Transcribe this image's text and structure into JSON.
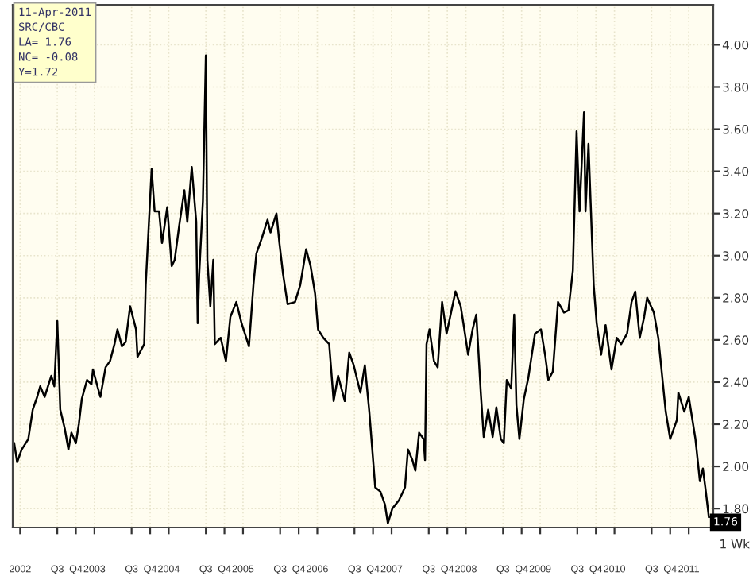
{
  "chart_data": {
    "type": "line",
    "x": [
      2001.92,
      2001.96,
      2002.02,
      2002.11,
      2002.17,
      2002.23,
      2002.27,
      2002.33,
      2002.42,
      2002.46,
      2002.5,
      2002.54,
      2002.6,
      2002.65,
      2002.69,
      2002.75,
      2002.79,
      2002.83,
      2002.9,
      2002.96,
      2002.98,
      2003.04,
      2003.08,
      2003.15,
      2003.21,
      2003.27,
      2003.31,
      2003.37,
      2003.42,
      2003.48,
      2003.56,
      2003.58,
      2003.67,
      2003.69,
      2003.77,
      2003.81,
      2003.87,
      2003.91,
      2003.98,
      2004.04,
      2004.08,
      2004.14,
      2004.21,
      2004.25,
      2004.31,
      2004.37,
      2004.39,
      2004.41,
      2004.46,
      2004.5,
      2004.52,
      2004.56,
      2004.6,
      2004.62,
      2004.7,
      2004.77,
      2004.83,
      2004.91,
      2004.98,
      2005.08,
      2005.14,
      2005.18,
      2005.25,
      2005.33,
      2005.37,
      2005.45,
      2005.49,
      2005.54,
      2005.6,
      2005.7,
      2005.77,
      2005.85,
      2005.91,
      2005.97,
      2006.01,
      2006.08,
      2006.16,
      2006.22,
      2006.28,
      2006.37,
      2006.43,
      2006.49,
      2006.58,
      2006.64,
      2006.7,
      2006.74,
      2006.78,
      2006.85,
      2006.91,
      2006.95,
      2007.01,
      2007.1,
      2007.18,
      2007.22,
      2007.28,
      2007.32,
      2007.37,
      2007.43,
      2007.45,
      2007.47,
      2007.51,
      2007.57,
      2007.62,
      2007.68,
      2007.74,
      2007.8,
      2007.86,
      2007.93,
      2007.97,
      2008.03,
      2008.09,
      2008.14,
      2008.2,
      2008.24,
      2008.3,
      2008.36,
      2008.41,
      2008.47,
      2008.51,
      2008.55,
      2008.61,
      2008.65,
      2008.68,
      2008.72,
      2008.78,
      2008.84,
      2008.93,
      2009.01,
      2009.07,
      2009.11,
      2009.17,
      2009.24,
      2009.32,
      2009.38,
      2009.44,
      2009.49,
      2009.53,
      2009.59,
      2009.61,
      2009.65,
      2009.72,
      2009.76,
      2009.82,
      2009.88,
      2009.96,
      2010.03,
      2010.09,
      2010.17,
      2010.23,
      2010.28,
      2010.34,
      2010.4,
      2010.44,
      2010.53,
      2010.59,
      2010.69,
      2010.75,
      2010.84,
      2010.86,
      2010.94,
      2011.0,
      2011.09,
      2011.15,
      2011.19,
      2011.23,
      2011.27
    ],
    "series": [
      {
        "color": "#000000",
        "values": [
          2.11,
          2.02,
          2.08,
          2.13,
          2.27,
          2.33,
          2.38,
          2.33,
          2.43,
          2.38,
          2.69,
          2.27,
          2.18,
          2.08,
          2.16,
          2.11,
          2.2,
          2.32,
          2.41,
          2.39,
          2.46,
          2.38,
          2.33,
          2.47,
          2.5,
          2.58,
          2.65,
          2.57,
          2.59,
          2.76,
          2.65,
          2.52,
          2.58,
          2.86,
          3.41,
          3.21,
          3.21,
          3.06,
          3.23,
          2.95,
          2.98,
          3.14,
          3.31,
          3.16,
          3.42,
          3.16,
          2.68,
          2.91,
          3.26,
          3.95,
          2.98,
          2.76,
          2.98,
          2.58,
          2.61,
          2.5,
          2.71,
          2.78,
          2.68,
          2.57,
          2.86,
          3.01,
          3.08,
          3.17,
          3.11,
          3.2,
          3.06,
          2.91,
          2.77,
          2.78,
          2.86,
          3.03,
          2.95,
          2.82,
          2.65,
          2.61,
          2.58,
          2.31,
          2.43,
          2.31,
          2.54,
          2.48,
          2.35,
          2.48,
          2.26,
          2.08,
          1.9,
          1.88,
          1.82,
          1.73,
          1.8,
          1.84,
          1.9,
          2.08,
          2.03,
          1.98,
          2.16,
          2.13,
          2.03,
          2.58,
          2.65,
          2.5,
          2.47,
          2.78,
          2.63,
          2.73,
          2.83,
          2.76,
          2.67,
          2.53,
          2.65,
          2.72,
          2.35,
          2.14,
          2.27,
          2.14,
          2.28,
          2.13,
          2.11,
          2.41,
          2.37,
          2.72,
          2.29,
          2.13,
          2.32,
          2.42,
          2.63,
          2.65,
          2.52,
          2.41,
          2.45,
          2.78,
          2.73,
          2.74,
          2.93,
          3.59,
          3.21,
          3.68,
          3.21,
          3.53,
          2.86,
          2.68,
          2.53,
          2.67,
          2.46,
          2.61,
          2.58,
          2.63,
          2.78,
          2.83,
          2.61,
          2.71,
          2.8,
          2.73,
          2.61,
          2.26,
          2.13,
          2.22,
          2.35,
          2.26,
          2.33,
          2.13,
          1.93,
          1.99,
          1.88,
          1.76
        ]
      }
    ],
    "xlim": [
      2001.9,
      2011.33
    ],
    "ylim": [
      1.71,
      4.19
    ],
    "yticks": [
      {
        "value": 1.8,
        "label": "1.80"
      },
      {
        "value": 2.0,
        "label": "2.00"
      },
      {
        "value": 2.2,
        "label": "2.20"
      },
      {
        "value": 2.4,
        "label": "2.40"
      },
      {
        "value": 2.6,
        "label": "2.60"
      },
      {
        "value": 2.8,
        "label": "2.80"
      },
      {
        "value": 3.0,
        "label": "3.00"
      },
      {
        "value": 3.2,
        "label": "3.20"
      },
      {
        "value": 3.4,
        "label": "3.40"
      },
      {
        "value": 3.6,
        "label": "3.60"
      },
      {
        "value": 3.8,
        "label": "3.80"
      },
      {
        "value": 4.0,
        "label": "4.00"
      }
    ],
    "xticks": [
      {
        "value": 2002,
        "label": "2002"
      },
      {
        "value": 2002.5,
        "label": "Q3"
      },
      {
        "value": 2002.75,
        "label": "Q4"
      },
      {
        "value": 2003,
        "label": "2003"
      },
      {
        "value": 2003.5,
        "label": "Q3"
      },
      {
        "value": 2003.75,
        "label": "Q4"
      },
      {
        "value": 2004,
        "label": "2004"
      },
      {
        "value": 2004.5,
        "label": "Q3"
      },
      {
        "value": 2004.75,
        "label": "Q4"
      },
      {
        "value": 2005,
        "label": "2005"
      },
      {
        "value": 2005.5,
        "label": "Q3"
      },
      {
        "value": 2005.75,
        "label": "Q4"
      },
      {
        "value": 2006,
        "label": "2006"
      },
      {
        "value": 2006.5,
        "label": "Q3"
      },
      {
        "value": 2006.75,
        "label": "Q4"
      },
      {
        "value": 2007,
        "label": "2007"
      },
      {
        "value": 2007.5,
        "label": "Q3"
      },
      {
        "value": 2007.75,
        "label": "Q4"
      },
      {
        "value": 2008,
        "label": "2008"
      },
      {
        "value": 2008.5,
        "label": "Q3"
      },
      {
        "value": 2008.75,
        "label": "Q4"
      },
      {
        "value": 2009,
        "label": "2009"
      },
      {
        "value": 2009.5,
        "label": "Q3"
      },
      {
        "value": 2009.75,
        "label": "Q4"
      },
      {
        "value": 2010,
        "label": "2010"
      },
      {
        "value": 2010.5,
        "label": "Q3"
      },
      {
        "value": 2010.75,
        "label": "Q4"
      },
      {
        "value": 2011,
        "label": "2011"
      }
    ],
    "grid": true,
    "annotations": [
      "11-Apr-2011",
      "SRC/CBC",
      "LA= 1.76",
      "NC= -0.08",
      "Y=1.72",
      "1 Wk",
      {
        "text": "1.76",
        "x": 2011.27,
        "y": 1.76
      }
    ]
  }
}
